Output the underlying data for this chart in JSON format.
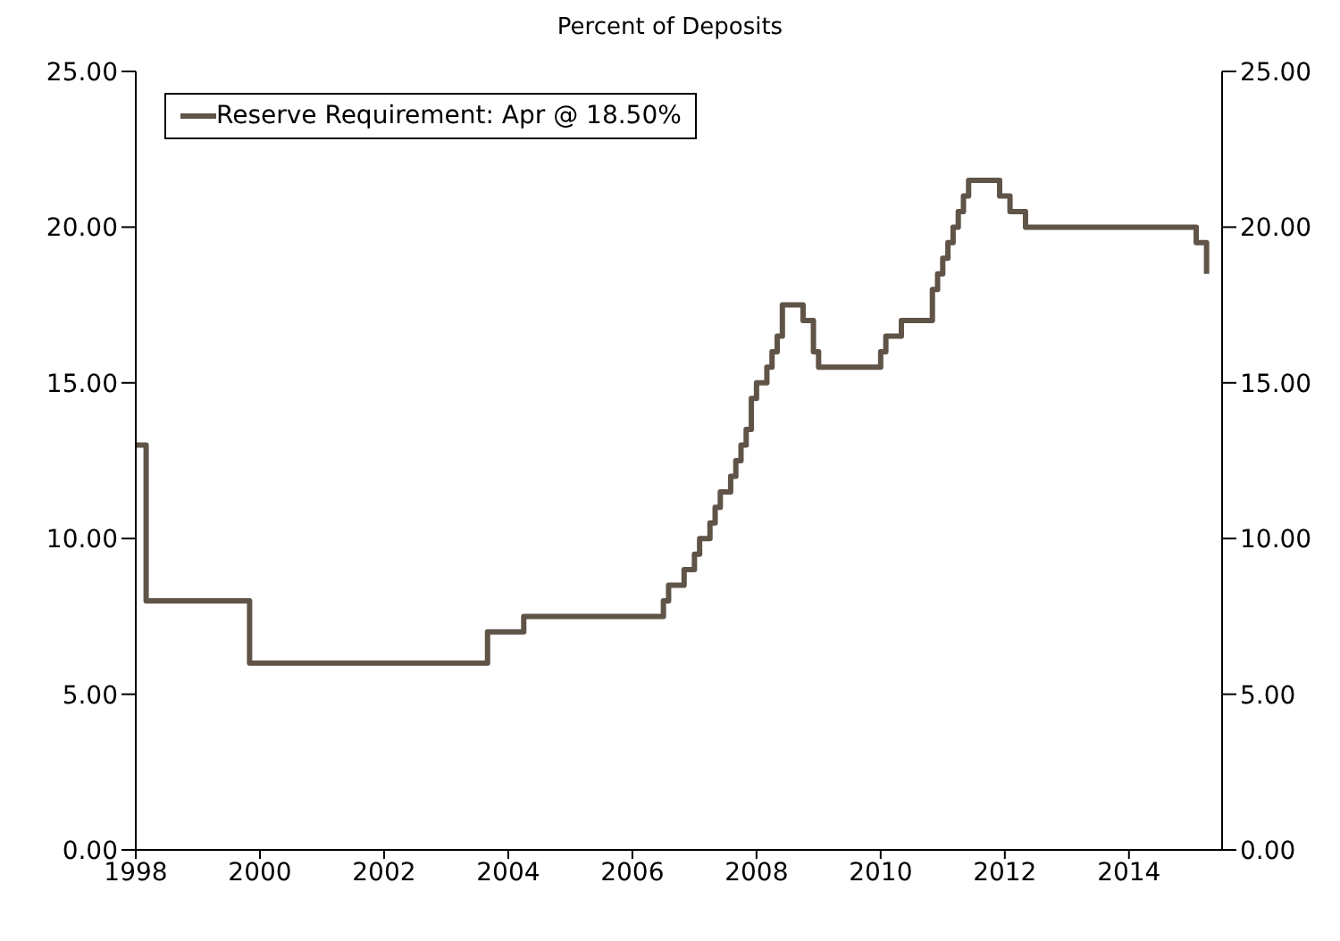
{
  "chart_data": {
    "type": "step",
    "subtitle": "Percent of Deposits",
    "x": [
      "1998-01",
      "1998-03",
      "1999-11",
      "2003-09",
      "2004-04",
      "2006-07",
      "2006-08",
      "2006-11",
      "2007-01",
      "2007-02",
      "2007-04",
      "2007-05",
      "2007-06",
      "2007-08",
      "2007-09",
      "2007-10",
      "2007-11",
      "2007-12",
      "2008-01",
      "2008-03",
      "2008-04",
      "2008-05",
      "2008-06",
      "2008-10",
      "2008-12",
      "2009-01",
      "2010-01",
      "2010-02",
      "2010-05",
      "2010-11",
      "2010-12",
      "2011-01",
      "2011-02",
      "2011-03",
      "2011-04",
      "2011-05",
      "2011-06",
      "2011-12",
      "2012-02",
      "2012-05",
      "2015-02",
      "2015-04"
    ],
    "series": [
      {
        "name": "Reserve Requirement: Apr @ 18.50%",
        "color": "#5f5447",
        "values": [
          13,
          8,
          6,
          7,
          7.5,
          8,
          8.5,
          9,
          9.5,
          10,
          10.5,
          11,
          11.5,
          12,
          12.5,
          13,
          13.5,
          14.5,
          15,
          15.5,
          16,
          16.5,
          17.5,
          17,
          16,
          15.5,
          16,
          16.5,
          17,
          18,
          18.5,
          19,
          19.5,
          20,
          20.5,
          21,
          21.5,
          21,
          20.5,
          20,
          19.5,
          18.5
        ]
      }
    ],
    "xlim": [
      "1998-01",
      "2015-07"
    ],
    "xticks": [
      "1998",
      "2000",
      "2002",
      "2004",
      "2006",
      "2008",
      "2010",
      "2012",
      "2014"
    ],
    "ylim": [
      0,
      25
    ],
    "yticks": [
      {
        "value": 0,
        "label": "0.00"
      },
      {
        "value": 5,
        "label": "5.00"
      },
      {
        "value": 10,
        "label": "10.00"
      },
      {
        "value": 15,
        "label": "15.00"
      },
      {
        "value": 20,
        "label": "20.00"
      },
      {
        "value": 25,
        "label": "25.00"
      }
    ],
    "y2lim": [
      0,
      25
    ],
    "y2ticks": [
      {
        "value": 0,
        "label": "0.00"
      },
      {
        "value": 5,
        "label": "5.00"
      },
      {
        "value": 10,
        "label": "10.00"
      },
      {
        "value": 15,
        "label": "15.00"
      },
      {
        "value": 20,
        "label": "20.00"
      },
      {
        "value": 25,
        "label": "25.00"
      }
    ],
    "legend": "top left",
    "grid": false,
    "line_style": "solid",
    "marker": "none"
  }
}
